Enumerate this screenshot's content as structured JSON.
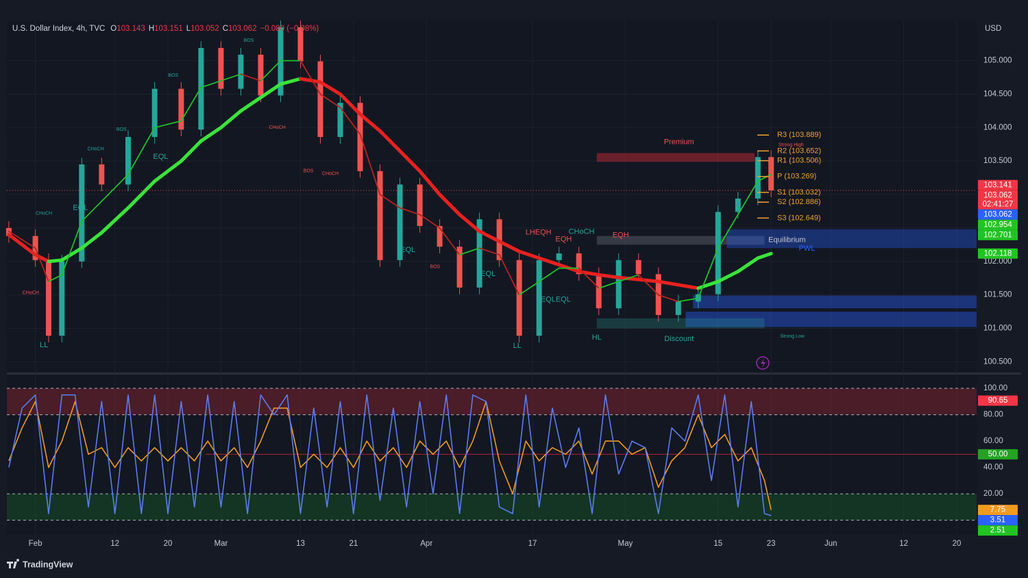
{
  "chart_data": [
    {
      "type": "candlestick",
      "title": "U.S. Dollar Index, 4h, TVC",
      "ohlc": [
        {
          "label": "O",
          "value": 103.143
        },
        {
          "label": "H",
          "value": 103.151
        },
        {
          "label": "L",
          "value": 103.052
        },
        {
          "label": "C",
          "value": 103.062
        }
      ],
      "change": {
        "value": -0.08,
        "label": "−0.080 (−0.08%)"
      },
      "currency": "USD",
      "x": [
        -4,
        0,
        2,
        4,
        7,
        10,
        14,
        18,
        22,
        25,
        28,
        31,
        34,
        37,
        40,
        43,
        46,
        49,
        52,
        55,
        58,
        61,
        64,
        67,
        70,
        73,
        76,
        79,
        82,
        85,
        88,
        91,
        94,
        97,
        100,
        103,
        106,
        109,
        111
      ],
      "open": [
        102.5,
        102.38,
        102.02,
        100.89,
        102.0,
        103.45,
        103.15,
        103.86,
        104.58,
        103.97,
        105.19,
        104.58,
        105.09,
        104.48,
        105.5,
        104.99,
        103.86,
        104.37,
        103.35,
        102.02,
        103.15,
        102.53,
        102.22,
        101.61,
        102.63,
        102.02,
        100.89,
        102.02,
        102.12,
        101.81,
        101.3,
        102.02,
        101.81,
        101.2,
        101.4,
        101.51,
        102.74,
        102.94,
        103.56
      ],
      "high": [
        102.6,
        102.48,
        102.12,
        102.1,
        103.55,
        103.55,
        103.96,
        104.68,
        104.68,
        105.29,
        105.29,
        105.19,
        105.19,
        105.6,
        105.6,
        105.09,
        104.47,
        104.47,
        103.45,
        103.25,
        103.25,
        102.63,
        102.32,
        102.73,
        102.73,
        102.12,
        102.12,
        102.22,
        102.22,
        101.91,
        102.12,
        102.12,
        101.91,
        101.5,
        101.61,
        102.84,
        103.04,
        103.66,
        103.66
      ],
      "low": [
        102.28,
        101.92,
        100.79,
        100.79,
        101.9,
        103.05,
        103.05,
        103.76,
        103.87,
        103.87,
        104.48,
        104.48,
        104.38,
        104.38,
        104.89,
        103.76,
        103.76,
        103.25,
        101.92,
        101.92,
        102.43,
        102.12,
        101.51,
        101.51,
        101.92,
        100.79,
        100.79,
        101.92,
        101.71,
        101.2,
        101.2,
        101.71,
        101.1,
        101.1,
        101.3,
        101.41,
        102.64,
        102.84,
        102.96
      ],
      "close": [
        102.38,
        102.02,
        100.89,
        102.0,
        103.45,
        103.15,
        103.86,
        104.58,
        103.97,
        105.19,
        104.58,
        105.09,
        104.48,
        105.5,
        104.99,
        103.86,
        104.37,
        103.35,
        102.02,
        103.15,
        102.53,
        102.22,
        101.61,
        102.63,
        102.02,
        100.89,
        102.02,
        102.12,
        101.81,
        101.3,
        102.02,
        101.81,
        101.2,
        101.4,
        101.51,
        102.74,
        102.94,
        103.56,
        103.062
      ],
      "up_color": "#26a69a",
      "down_color": "#ef5350",
      "series": [
        {
          "color_up": "#3ae33a",
          "color_down": "#e8211f",
          "values": [
            102.4,
            102.1,
            102.0,
            102.02,
            102.2,
            102.43,
            102.8,
            103.2,
            103.5,
            103.8,
            104.0,
            104.25,
            104.45,
            104.65,
            104.73,
            104.68,
            104.5,
            104.2,
            103.95,
            103.65,
            103.35,
            103.0,
            102.7,
            102.45,
            102.3,
            102.15,
            102.05,
            101.95,
            101.85,
            101.8,
            101.76,
            101.73,
            101.7,
            101.65,
            101.6,
            101.7,
            101.85,
            102.05,
            102.118
          ]
        },
        {
          "color_up": "#1fbf2a",
          "color_down": "#b8231f",
          "values": [
            102.45,
            102.2,
            101.7,
            101.8,
            102.6,
            102.9,
            103.3,
            104.0,
            104.1,
            104.6,
            104.7,
            104.8,
            104.7,
            105.0,
            105.0,
            104.5,
            104.3,
            103.9,
            103.0,
            102.8,
            102.7,
            102.5,
            102.1,
            102.2,
            102.1,
            101.5,
            101.7,
            101.9,
            101.9,
            101.6,
            101.7,
            101.8,
            101.5,
            101.4,
            101.45,
            102.2,
            102.7,
            103.2,
            103.3
          ]
        }
      ],
      "xlim": [
        -4.3,
        142
      ],
      "ylim": [
        100.35,
        105.6
      ],
      "xticks": [
        {
          "value": 0,
          "label": "Feb"
        },
        12,
        20,
        {
          "value": 28,
          "label": "Mar"
        },
        {
          "value": 40,
          "label": "13"
        },
        {
          "value": 48,
          "label": "21"
        },
        {
          "value": 59,
          "label": "Apr"
        },
        {
          "value": 75,
          "label": "17"
        },
        {
          "value": 89,
          "label": "May"
        },
        {
          "value": 103,
          "label": "15"
        },
        {
          "value": 111,
          "label": "23"
        },
        {
          "value": 120,
          "label": "Jun"
        },
        {
          "value": 131,
          "label": "12"
        },
        {
          "value": 139,
          "label": "20"
        }
      ],
      "yticks": [
        {
          "value": 100.5,
          "label": "100.500"
        },
        {
          "value": 101,
          "label": "101.000"
        },
        {
          "value": 101.5,
          "label": "101.500"
        },
        {
          "value": 102,
          "label": "102.000"
        },
        {
          "value": 102.5,
          "label": "102.500"
        },
        {
          "value": 103,
          "label": "103.000"
        },
        {
          "value": 103.5,
          "label": "103.500"
        },
        {
          "value": 104,
          "label": "104.000"
        },
        {
          "value": 104.5,
          "label": "104.500"
        },
        {
          "value": 105,
          "label": "105.000"
        }
      ],
      "zones": [
        {
          "x0": 84.7,
          "x1": 108.5,
          "y0": 103.49,
          "y1": 103.62,
          "color": "rgba(178,40,51,0.55)"
        },
        {
          "x0": 84.7,
          "x1": 110.0,
          "y0": 102.25,
          "y1": 102.38,
          "color": "rgba(120,123,134,0.35)"
        },
        {
          "x0": 104.3,
          "x1": 142,
          "y0": 102.2,
          "y1": 102.48,
          "color": "rgba(41,98,255,0.35)"
        },
        {
          "x0": 99.2,
          "x1": 142,
          "y0": 101.3,
          "y1": 101.49,
          "color": "rgba(41,98,255,0.4)"
        },
        {
          "x0": 98.1,
          "x1": 142,
          "y0": 101.02,
          "y1": 101.25,
          "color": "rgba(41,98,255,0.4)"
        },
        {
          "x0": 84.7,
          "x1": 110.0,
          "y0": 101.0,
          "y1": 101.15,
          "color": "rgba(38,166,154,0.25)"
        }
      ],
      "pivot_color": "#f0a22e",
      "pivots": [
        {
          "value": 103.889,
          "label": "R3 (103.889)"
        },
        {
          "value": 103.652,
          "label": "R2 (103.652)"
        },
        {
          "value": 103.506,
          "label": "R1 (103.506)"
        },
        {
          "value": 103.269,
          "label": "P (103.269)"
        },
        {
          "value": 103.032,
          "label": "S1 (103.032)"
        },
        {
          "value": 102.886,
          "label": "S2 (102.886)"
        },
        {
          "value": 102.649,
          "label": "S3 (102.649)"
        }
      ],
      "annotations": [
        {
          "text": "LL",
          "x": 1.3,
          "y": 100.75,
          "color": "#26a69a"
        },
        {
          "text": "LL",
          "x": 72.7,
          "y": 100.74,
          "color": "#26a69a"
        },
        {
          "text": "HL",
          "x": 84.7,
          "y": 100.86,
          "color": "#26a69a"
        },
        {
          "text": "EQL",
          "x": 6.8,
          "y": 102.8,
          "color": "#26a69a"
        },
        {
          "text": "EQL",
          "x": 18.9,
          "y": 103.56,
          "color": "#26a69a"
        },
        {
          "text": "EQL",
          "x": 56.2,
          "y": 102.17,
          "color": "#26a69a"
        },
        {
          "text": "EQL",
          "x": 68.3,
          "y": 101.81,
          "color": "#26a69a"
        },
        {
          "text": "EQLEQL",
          "x": 78.5,
          "y": 101.43,
          "color": "#26a69a"
        },
        {
          "text": "LHEQH",
          "x": 75.9,
          "y": 102.43,
          "color": "#ef5350"
        },
        {
          "text": "EQH",
          "x": 79.7,
          "y": 102.33,
          "color": "#ef5350"
        },
        {
          "text": "CHoCH",
          "x": 82.4,
          "y": 102.44,
          "color": "#26a69a"
        },
        {
          "text": "EQH",
          "x": 88.3,
          "y": 102.39,
          "color": "#ef5350"
        },
        {
          "text": "Premium",
          "x": 97.1,
          "y": 103.78,
          "color": "#ef5350"
        },
        {
          "text": "Equilibrium",
          "x": 113.4,
          "y": 102.32,
          "color": "#c5c8d0"
        },
        {
          "text": "Discount",
          "x": 97.1,
          "y": 100.84,
          "color": "#26a69a"
        },
        {
          "text": "PWL",
          "x": 116.4,
          "y": 102.19,
          "color": "#2962ff"
        }
      ],
      "minor_annotations": [
        {
          "text": "Strong High",
          "x": 114,
          "y": 103.74,
          "color": "#ef5350"
        },
        {
          "text": "Strong Low",
          "x": 114.2,
          "y": 100.88,
          "color": "#26a69a"
        },
        {
          "text": "CHoCH",
          "x": -0.7,
          "y": 101.53,
          "color": "#ef5350"
        },
        {
          "text": "CHoCH",
          "x": 1.3,
          "y": 102.72,
          "color": "#26a69a"
        },
        {
          "text": "CHoCH",
          "x": 9.1,
          "y": 103.68,
          "color": "#26a69a"
        },
        {
          "text": "BOS",
          "x": 13,
          "y": 103.97,
          "color": "#26a69a"
        },
        {
          "text": "BOS",
          "x": 20.8,
          "y": 104.78,
          "color": "#26a69a"
        },
        {
          "text": "BOS",
          "x": 32.2,
          "y": 105.3,
          "color": "#26a69a"
        },
        {
          "text": "CHoCH",
          "x": 36.5,
          "y": 104.0,
          "color": "#ef5350"
        },
        {
          "text": "BOS",
          "x": 41.2,
          "y": 103.35,
          "color": "#ef5350"
        },
        {
          "text": "CHoCH",
          "x": 44.5,
          "y": 103.31,
          "color": "#ef5350"
        },
        {
          "text": "BOS",
          "x": 60.3,
          "y": 101.92,
          "color": "#ef5350"
        }
      ],
      "price_labels": [
        {
          "value": 103.141,
          "color": "#f23645"
        },
        {
          "value": 103.062,
          "color": "#f23645",
          "countdown": "02:41:27"
        },
        {
          "value": 103.062,
          "color": "#2962ff"
        },
        {
          "value": 102.954,
          "color": "#22c322"
        },
        {
          "value": 102.701,
          "color": "#22c322"
        },
        {
          "value": 102.118,
          "color": "#22c322"
        }
      ]
    },
    {
      "type": "line",
      "x": [
        -4,
        -2,
        0,
        2,
        4,
        6,
        8,
        10,
        12,
        14,
        16,
        18,
        20,
        22,
        24,
        26,
        28,
        30,
        32,
        34,
        36,
        38,
        40,
        42,
        44,
        46,
        48,
        50,
        52,
        54,
        56,
        58,
        60,
        62,
        64,
        66,
        68,
        70,
        72,
        74,
        76,
        78,
        80,
        82,
        84,
        86,
        88,
        90,
        92,
        94,
        96,
        98,
        100,
        102,
        104,
        106,
        108,
        110,
        111
      ],
      "series": [
        {
          "color": "#5b7cf0",
          "values": [
            40,
            85,
            95,
            5,
            95,
            95,
            10,
            90,
            5,
            95,
            5,
            95,
            5,
            90,
            10,
            95,
            10,
            90,
            5,
            95,
            80,
            95,
            5,
            85,
            10,
            90,
            5,
            95,
            15,
            85,
            10,
            90,
            20,
            95,
            5,
            95,
            90,
            10,
            5,
            95,
            10,
            85,
            40,
            70,
            5,
            95,
            35,
            60,
            55,
            5,
            70,
            60,
            95,
            30,
            95,
            10,
            90,
            5,
            3.51
          ]
        },
        {
          "color": "#f29a1f",
          "values": [
            45,
            70,
            90,
            40,
            60,
            90,
            50,
            55,
            40,
            55,
            45,
            55,
            45,
            55,
            45,
            60,
            45,
            55,
            40,
            60,
            85,
            85,
            40,
            50,
            40,
            55,
            40,
            60,
            45,
            55,
            40,
            60,
            50,
            60,
            40,
            60,
            90,
            45,
            20,
            60,
            45,
            55,
            50,
            60,
            35,
            60,
            60,
            50,
            55,
            25,
            45,
            55,
            80,
            55,
            65,
            45,
            55,
            30,
            7.75
          ]
        }
      ],
      "xlim": [
        -4.3,
        142
      ],
      "ylim": [
        -10.6,
        109.9
      ],
      "yticks": [
        {
          "value": 20,
          "label": "20.00"
        },
        {
          "value": 40,
          "label": "40.00"
        },
        {
          "value": 60,
          "label": "60.00"
        },
        {
          "value": 80,
          "label": "80.00"
        },
        {
          "value": 100,
          "label": "100.00"
        }
      ],
      "levels": [
        0,
        20,
        80,
        100
      ],
      "midline": 50,
      "zones": [
        {
          "y0": 80,
          "y1": 100,
          "color": "rgba(178,40,51,0.35)"
        },
        {
          "y0": 0,
          "y1": 20,
          "color": "rgba(24,110,40,0.35)"
        }
      ],
      "price_labels": [
        {
          "value": 90.65,
          "color": "#f23645"
        },
        {
          "value": 50,
          "label": "50.00",
          "color": "#22a322"
        },
        {
          "value": 7.75,
          "color": "#f29a1f"
        },
        {
          "value": 3.51,
          "color": "#2962ff"
        },
        {
          "value": 2.51,
          "color": "#22c322"
        }
      ]
    }
  ],
  "footer": {
    "brand": "TradingView"
  }
}
